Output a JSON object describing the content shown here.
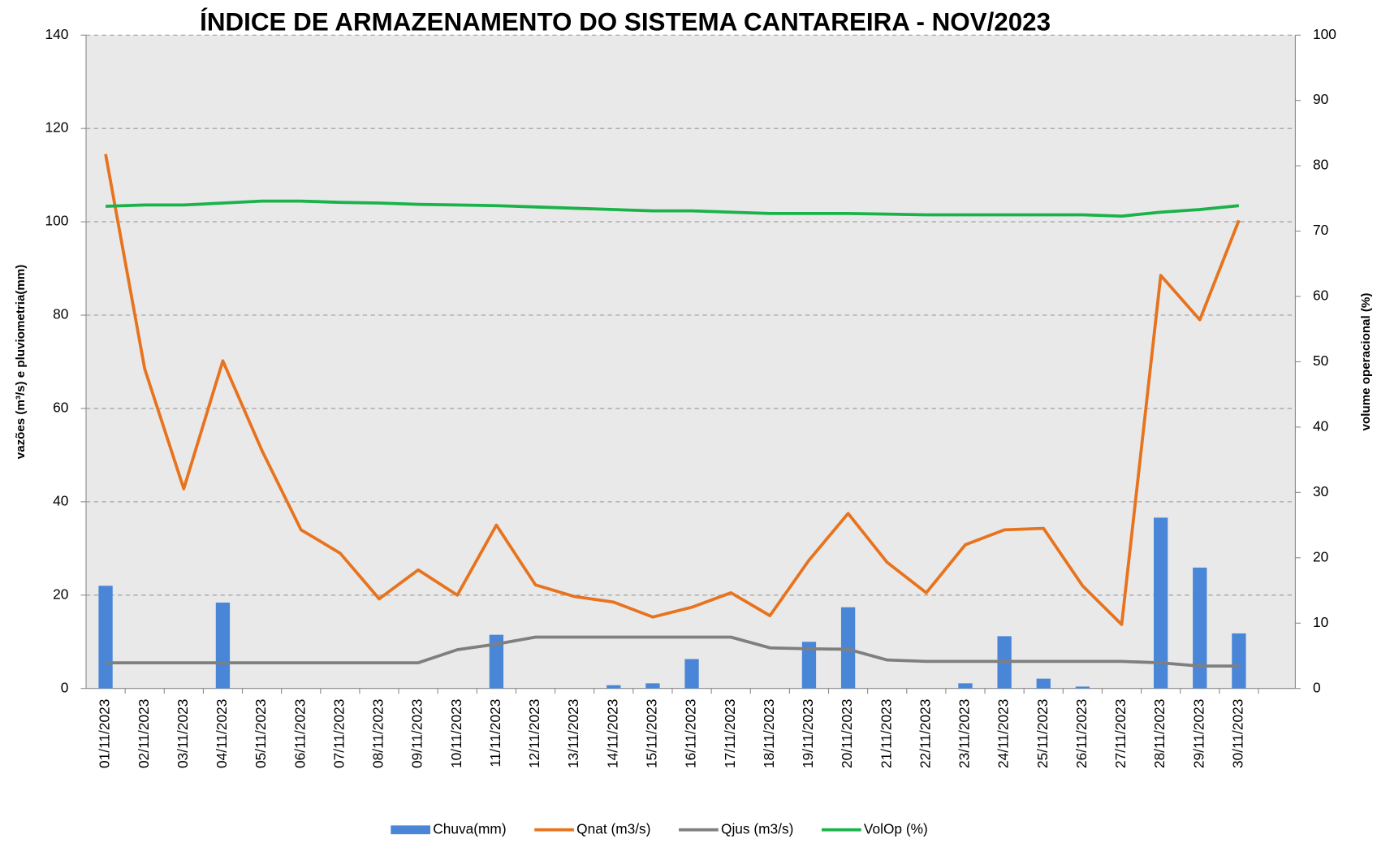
{
  "chart_data": {
    "type": "bar",
    "title": "ÍNDICE DE ARMAZENAMENTO  DO SISTEMA CANTAREIRA - NOV/2023",
    "y_label": "vazões  (m³/s) e pluviometria(mm)",
    "y2_label": "volume operacional  (%)",
    "categories": [
      "01/11/2023",
      "02/11/2023",
      "03/11/2023",
      "04/11/2023",
      "05/11/2023",
      "06/11/2023",
      "07/11/2023",
      "08/11/2023",
      "09/11/2023",
      "10/11/2023",
      "11/11/2023",
      "12/11/2023",
      "13/11/2023",
      "14/11/2023",
      "15/11/2023",
      "16/11/2023",
      "17/11/2023",
      "18/11/2023",
      "19/11/2023",
      "20/11/2023",
      "21/11/2023",
      "22/11/2023",
      "23/11/2023",
      "24/11/2023",
      "25/11/2023",
      "26/11/2023",
      "27/11/2023",
      "28/11/2023",
      "29/11/2023",
      "30/11/2023"
    ],
    "series": [
      {
        "name": "Chuva(mm)",
        "type": "bar",
        "color": "#4a86d8",
        "values": [
          22,
          0,
          0,
          18.4,
          0,
          0,
          0,
          0,
          0,
          0,
          11.5,
          0,
          0,
          0.7,
          1.1,
          6.3,
          0,
          0,
          10,
          17.4,
          0,
          0,
          1.1,
          11.2,
          2.1,
          0.4,
          0,
          36.6,
          25.9,
          11.8
        ]
      },
      {
        "name": "Qnat (m3/s)",
        "type": "line",
        "color": "#e8731e",
        "values": [
          114.5,
          68.5,
          42.8,
          70.2,
          51,
          34,
          29,
          19.2,
          25.4,
          20,
          35,
          22.2,
          19.7,
          18.5,
          15.3,
          17.4,
          20.5,
          15.6,
          27.5,
          37.5,
          27,
          20.5,
          30.8,
          34,
          34.3,
          22,
          13.7,
          88.5,
          79,
          100.3
        ]
      },
      {
        "name": "Qjus (m3/s)",
        "type": "line",
        "color": "#7f7f7f",
        "values": [
          5.5,
          5.5,
          5.5,
          5.5,
          5.5,
          5.5,
          5.5,
          5.5,
          5.5,
          8.3,
          9.5,
          11,
          11,
          11,
          11,
          11,
          11,
          8.7,
          8.5,
          8.4,
          6.1,
          5.8,
          5.8,
          5.8,
          5.8,
          5.8,
          5.8,
          5.5,
          4.8,
          4.8
        ]
      },
      {
        "name": "VolOp (%)",
        "type": "line",
        "axis": "y2",
        "color": "#1ab34a",
        "values": [
          73.8,
          74.0,
          74.0,
          74.3,
          74.6,
          74.6,
          74.4,
          74.3,
          74.1,
          74.0,
          73.9,
          73.7,
          73.5,
          73.3,
          73.1,
          73.1,
          72.9,
          72.7,
          72.7,
          72.7,
          72.6,
          72.5,
          72.5,
          72.5,
          72.5,
          72.5,
          72.3,
          72.9,
          73.3,
          73.9
        ]
      }
    ],
    "ylim": [
      0,
      140
    ],
    "yticks": [
      0,
      20,
      40,
      60,
      80,
      100,
      120,
      140
    ],
    "y2lim": [
      0,
      100
    ],
    "y2ticks": [
      0,
      10,
      20,
      30,
      40,
      50,
      60,
      70,
      80,
      90,
      100
    ],
    "grid": true
  }
}
